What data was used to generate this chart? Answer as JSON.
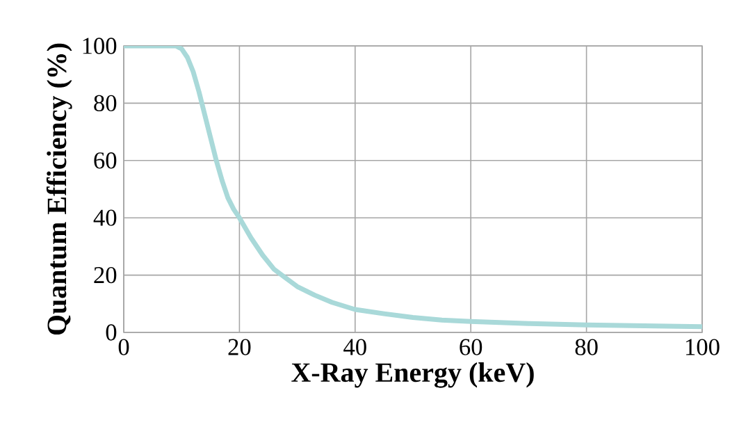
{
  "chart_data": {
    "type": "line",
    "xlabel": "X-Ray Energy (keV)",
    "ylabel": "Quantum Efficiency (%)",
    "x": [
      0,
      5,
      9,
      10,
      11,
      12,
      13,
      14,
      15,
      16,
      17,
      18,
      19,
      20,
      22,
      24,
      26,
      28,
      30,
      33,
      36,
      40,
      45,
      50,
      55,
      60,
      70,
      80,
      90,
      100
    ],
    "series": [
      {
        "color": "#a9d9d9",
        "values": [
          100,
          100,
          100,
          99,
          96,
          91,
          84,
          76,
          68,
          60,
          53,
          47,
          43,
          40,
          33,
          27,
          22,
          19,
          16,
          13,
          10.5,
          8,
          6.5,
          5.2,
          4.3,
          3.8,
          3.1,
          2.6,
          2.3,
          2
        ]
      }
    ],
    "xlim": [
      0,
      100
    ],
    "ylim": [
      0,
      100
    ],
    "xticks": [
      0,
      20,
      40,
      60,
      80,
      100
    ],
    "yticks": [
      0,
      20,
      40,
      60,
      80,
      100
    ],
    "grid": true,
    "marker": "none",
    "line_style": "solid"
  }
}
